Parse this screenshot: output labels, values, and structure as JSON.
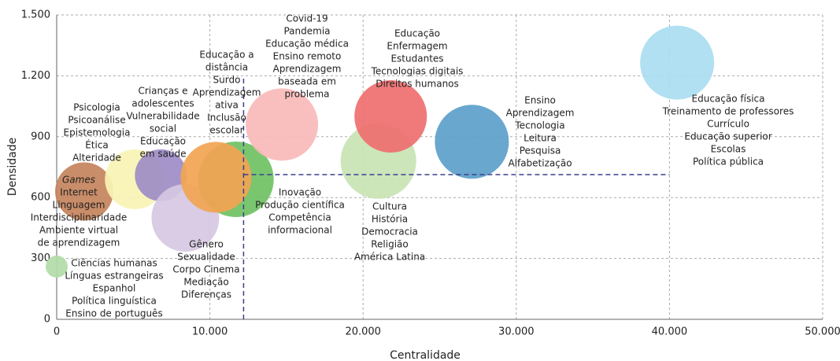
{
  "chart_data": {
    "type": "bubble",
    "x_label": "Centralidade",
    "y_label": "Densidade",
    "xlim": [
      0,
      50000
    ],
    "ylim": [
      0,
      1500
    ],
    "xticks": [
      0,
      {
        "value": 10000,
        "label": "10.000"
      },
      {
        "value": 20000,
        "label": "20.000"
      },
      {
        "value": 30000,
        "label": "30.000"
      },
      {
        "value": 40000,
        "label": "40.000"
      },
      {
        "value": 50000,
        "label": "50.000"
      }
    ],
    "yticks": [
      0,
      300,
      600,
      900,
      {
        "value": 1200,
        "label": "1.200"
      },
      {
        "value": 1500,
        "label": "1.500"
      }
    ],
    "grid": true,
    "x": [
      0,
      1800,
      5100,
      6800,
      8400,
      11700,
      10400,
      14700,
      21000,
      21800,
      27100,
      40500
    ],
    "values": [
      260,
      630,
      690,
      710,
      500,
      690,
      700,
      960,
      780,
      1000,
      875,
      1265
    ],
    "sizes": [
      14,
      37,
      38,
      33,
      43,
      48,
      45,
      46,
      48,
      46,
      47,
      47
    ],
    "colors": [
      "#b2dba8",
      "#c4835c",
      "#f9f4b4",
      "#9d8cc6",
      "#d6c8e2",
      "#6fc163",
      "#f2a452",
      "#f9baba",
      "#c8e4b4",
      "#ef6f6f",
      "#5c9fca",
      "#a9ddf0"
    ],
    "reference_lines": {
      "x": 12200,
      "x_span": [
        0,
        1200
      ],
      "y": 713,
      "y_span": [
        12200,
        40000
      ],
      "color": "#3a3f8f"
    },
    "annotations": [
      [
        "Ciências humanas",
        "Línguas estrangeiras",
        "Espanhol",
        "Política linguística",
        "Ensino de português"
      ],
      [
        "Games",
        "Internet",
        "Linguagem",
        "Interdisciplinaridade",
        "Ambiente virtual",
        "de aprendizagem"
      ],
      [
        "Psicologia",
        "Psicoanálise",
        "Epistemologia",
        "Ética",
        "Alteridade"
      ],
      [
        "Crianças e",
        "adolescentes",
        "Vulnerabilidade",
        "social",
        "Educação",
        "em saúde"
      ],
      [
        "Gênero",
        "Sexualidade",
        "Corpo Cinema",
        "Mediação",
        "Diferenças"
      ],
      [
        "Educação a",
        "distância",
        "Surdo",
        "Aprendizagem",
        "ativa",
        "Inclusão",
        "escolar"
      ],
      [
        "Inovação",
        "Produção científica",
        "Competência",
        "informacional"
      ],
      [
        "Covid-19",
        "Pandemia",
        "Educação médica",
        "Ensino remoto",
        "Aprendizagem",
        "baseada em",
        "problema"
      ],
      [
        "Cultura",
        "História",
        "Democracia",
        "Religião",
        "América Latina"
      ],
      [
        "Educação",
        "Enfermagem",
        "Estudantes",
        "Tecnologias digitais",
        "Direitos humanos"
      ],
      [
        "Ensino",
        "Aprendizagem",
        "Tecnologia",
        "Leitura",
        "Pesquisa",
        "Alfabetização"
      ],
      [
        "Educação física",
        "Treinamento de professores",
        "Currículo",
        "Educação superior",
        "Escolas",
        "Política pública"
      ]
    ]
  }
}
